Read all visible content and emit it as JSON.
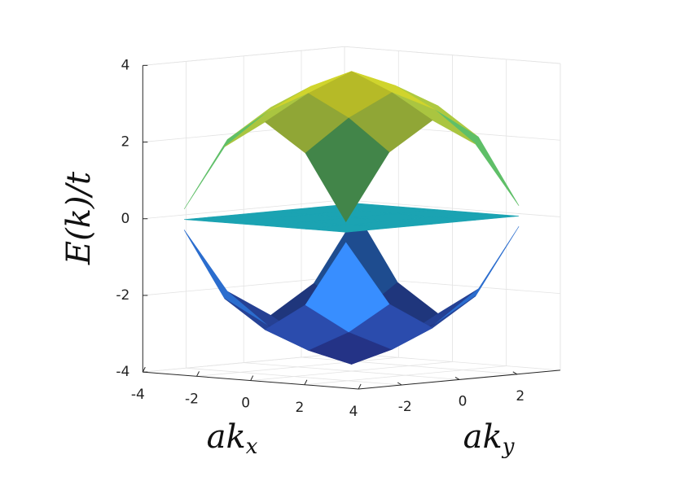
{
  "chart_data": {
    "type": "surface",
    "xlabel": {
      "base": "ak",
      "sub": "x"
    },
    "ylabel": {
      "base": "ak",
      "sub": "y"
    },
    "zlabel": "E(k)/t",
    "x": [
      -3,
      -1.5,
      0,
      1.5,
      3
    ],
    "y": [
      -3,
      -1.5,
      0,
      1.5,
      3
    ],
    "series": [
      {
        "z": [
          [
            -0.27,
            -1.98,
            -2.71,
            -1.98,
            -0.27
          ],
          [
            -1.98,
            -2.79,
            -3.35,
            -2.79,
            -1.98
          ],
          [
            -2.71,
            -3.35,
            -3.82,
            -3.35,
            -2.71
          ],
          [
            -1.98,
            -2.79,
            -3.35,
            -2.79,
            -1.98
          ],
          [
            -0.27,
            -1.98,
            -2.71,
            -1.98,
            -0.27
          ]
        ]
      },
      {
        "z": [
          [
            0,
            0,
            0,
            0,
            0
          ],
          [
            0,
            0,
            0,
            0,
            0
          ],
          [
            0,
            0,
            0,
            0,
            0
          ],
          [
            0,
            0,
            0,
            0,
            0
          ],
          [
            0,
            0,
            0,
            0,
            0
          ]
        ]
      },
      {
        "z": [
          [
            0.27,
            1.98,
            2.71,
            1.98,
            0.27
          ],
          [
            1.98,
            2.79,
            3.35,
            2.79,
            1.98
          ],
          [
            2.71,
            3.35,
            3.82,
            3.35,
            2.71
          ],
          [
            1.98,
            2.79,
            3.35,
            2.79,
            1.98
          ],
          [
            0.27,
            1.98,
            2.71,
            1.98,
            0.27
          ]
        ]
      }
    ],
    "xlim": [
      -4,
      4
    ],
    "ylim": [
      -3.5,
      3.5
    ],
    "zlim": [
      -4,
      4
    ],
    "xticks": [
      -4,
      -2,
      0,
      2,
      4
    ],
    "yticks": [
      -2,
      0,
      2
    ],
    "zticks": [
      -4,
      -2,
      0,
      2,
      4
    ],
    "grid": true,
    "colormap": [
      "#1b1b5a",
      "#243a8c",
      "#2b6fd0",
      "#1fa0c8",
      "#17a69c",
      "#5cbf6a",
      "#b8c83a",
      "#f2e51a"
    ],
    "clim": [
      -4,
      4
    ]
  }
}
